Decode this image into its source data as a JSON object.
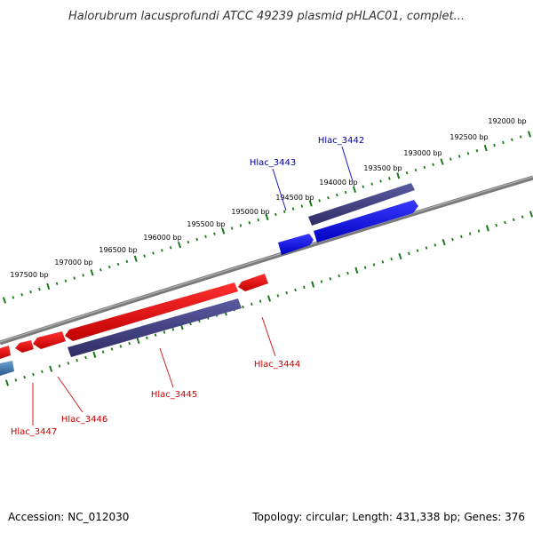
{
  "title": "Halorubrum lacusprofundi ATCC 49239 plasmid pHLAC01, complet...",
  "footer": {
    "accession": "Accession: NC_012030",
    "summary": "Topology: circular; Length: 431,338 bp; Genes: 376"
  },
  "colors": {
    "backbone": "#8a8a8a",
    "tick": "#1a7a1a",
    "forward_gene": "#1010e0",
    "reverse_gene": "#e01010",
    "cds_band": "#4a4a8a",
    "label_forward": "#0000aa",
    "label_reverse": "#cc0000"
  },
  "scale_labels": [
    "192000 bp",
    "192500 bp",
    "193000 bp",
    "193500 bp",
    "194000 bp",
    "194500 bp",
    "195000 bp",
    "195500 bp",
    "196000 bp",
    "196500 bp",
    "197000 bp",
    "197500 bp"
  ],
  "genes": [
    {
      "id": "Hlac_3442",
      "strand": "forward"
    },
    {
      "id": "Hlac_3443",
      "strand": "forward"
    },
    {
      "id": "Hlac_3444",
      "strand": "reverse"
    },
    {
      "id": "Hlac_3445",
      "strand": "reverse"
    },
    {
      "id": "Hlac_3446",
      "strand": "reverse"
    },
    {
      "id": "Hlac_3447",
      "strand": "reverse"
    }
  ]
}
